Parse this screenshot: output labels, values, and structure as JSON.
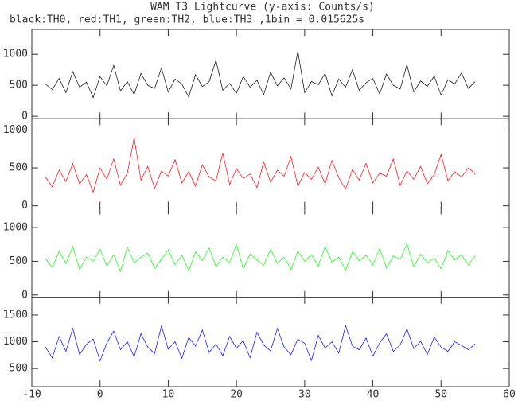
{
  "chart_data": [
    {
      "type": "line",
      "title": "WAM T3 Lightcurve (y-axis: Counts/s)",
      "subtitle": "black:TH0, red:TH1, green:TH2, blue:TH3 ,1bin = 0.015625s",
      "x": [
        -8,
        -7,
        -6,
        -5,
        -4,
        -3,
        -2,
        -1,
        0,
        1,
        2,
        3,
        4,
        5,
        6,
        7,
        8,
        9,
        10,
        11,
        12,
        13,
        14,
        15,
        16,
        17,
        18,
        19,
        20,
        21,
        22,
        23,
        24,
        25,
        26,
        27,
        28,
        29,
        30,
        31,
        32,
        33,
        34,
        35,
        36,
        37,
        38,
        39,
        40,
        41,
        42,
        43,
        44,
        45,
        46,
        47,
        48,
        49,
        50,
        51,
        52,
        53,
        54,
        55
      ],
      "series": [
        {
          "color": "#000000",
          "values": [
            520,
            430,
            610,
            380,
            720,
            470,
            550,
            300,
            640,
            490,
            820,
            410,
            560,
            350,
            690,
            500,
            450,
            780,
            390,
            600,
            520,
            310,
            670,
            480,
            560,
            900,
            420,
            530,
            370,
            640,
            470,
            580,
            350,
            710,
            490,
            620,
            440,
            1050,
            380,
            560,
            510,
            690,
            330,
            600,
            470,
            750,
            420,
            540,
            610,
            360,
            680,
            500,
            440,
            830,
            390,
            570,
            480,
            650,
            340,
            590,
            520,
            700,
            450,
            560
          ]
        }
      ],
      "xlim": [
        -10,
        60
      ],
      "ylim": [
        -40,
        1400
      ],
      "yticks": [
        0,
        500,
        1000
      ]
    },
    {
      "type": "line",
      "x": [
        -8,
        -7,
        -6,
        -5,
        -4,
        -3,
        -2,
        -1,
        0,
        1,
        2,
        3,
        4,
        5,
        6,
        7,
        8,
        9,
        10,
        11,
        12,
        13,
        14,
        15,
        16,
        17,
        18,
        19,
        20,
        21,
        22,
        23,
        24,
        25,
        26,
        27,
        28,
        29,
        30,
        31,
        32,
        33,
        34,
        35,
        36,
        37,
        38,
        39,
        40,
        41,
        42,
        43,
        44,
        45,
        46,
        47,
        48,
        49,
        50,
        51,
        52,
        53,
        54,
        55
      ],
      "series": [
        {
          "color": "#ff0000",
          "values": [
            380,
            250,
            470,
            320,
            560,
            290,
            410,
            180,
            500,
            350,
            620,
            270,
            430,
            900,
            340,
            520,
            230,
            460,
            390,
            610,
            300,
            450,
            260,
            540,
            380,
            330,
            700,
            280,
            490,
            360,
            420,
            240,
            580,
            310,
            470,
            390,
            650,
            260,
            440,
            350,
            510,
            290,
            600,
            370,
            220,
            480,
            340,
            560,
            300,
            430,
            390,
            620,
            270,
            460,
            350,
            520,
            290,
            410,
            680,
            330,
            450,
            380,
            500,
            420
          ]
        }
      ],
      "xlim": [
        -10,
        60
      ],
      "ylim": [
        -30,
        1150
      ],
      "yticks": [
        0,
        500,
        1000
      ]
    },
    {
      "type": "line",
      "x": [
        -8,
        -7,
        -6,
        -5,
        -4,
        -3,
        -2,
        -1,
        0,
        1,
        2,
        3,
        4,
        5,
        6,
        7,
        8,
        9,
        10,
        11,
        12,
        13,
        14,
        15,
        16,
        17,
        18,
        19,
        20,
        21,
        22,
        23,
        24,
        25,
        26,
        27,
        28,
        29,
        30,
        31,
        32,
        33,
        34,
        35,
        36,
        37,
        38,
        39,
        40,
        41,
        42,
        43,
        44,
        45,
        46,
        47,
        48,
        49,
        50,
        51,
        52,
        53,
        54,
        55
      ],
      "series": [
        {
          "color": "#00ff00",
          "values": [
            540,
            410,
            650,
            470,
            720,
            380,
            560,
            500,
            680,
            430,
            600,
            350,
            710,
            480,
            560,
            620,
            400,
            530,
            670,
            450,
            590,
            360,
            640,
            510,
            700,
            420,
            560,
            480,
            750,
            390,
            610,
            520,
            440,
            680,
            470,
            560,
            380,
            650,
            500,
            600,
            430,
            720,
            490,
            560,
            370,
            640,
            510,
            590,
            450,
            690,
            400,
            580,
            530,
            760,
            420,
            610,
            480,
            550,
            390,
            660,
            520,
            600,
            450,
            580
          ]
        }
      ],
      "xlim": [
        -10,
        60
      ],
      "ylim": [
        -35,
        1290
      ],
      "yticks": [
        0,
        500,
        1000
      ]
    },
    {
      "type": "line",
      "x": [
        -8,
        -7,
        -6,
        -5,
        -4,
        -3,
        -2,
        -1,
        0,
        1,
        2,
        3,
        4,
        5,
        6,
        7,
        8,
        9,
        10,
        11,
        12,
        13,
        14,
        15,
        16,
        17,
        18,
        19,
        20,
        21,
        22,
        23,
        24,
        25,
        26,
        27,
        28,
        29,
        30,
        31,
        32,
        33,
        34,
        35,
        36,
        37,
        38,
        39,
        40,
        41,
        42,
        43,
        44,
        45,
        46,
        47,
        48,
        49,
        50,
        51,
        52,
        53,
        54,
        55
      ],
      "series": [
        {
          "color": "#0000ff",
          "values": [
            900,
            700,
            1100,
            820,
            1250,
            760,
            950,
            1050,
            640,
            980,
            1200,
            850,
            1000,
            720,
            1150,
            900,
            780,
            1300,
            860,
            1000,
            690,
            1080,
            920,
            1220,
            800,
            960,
            740,
            1100,
            880,
            1020,
            700,
            1180,
            940,
            830,
            1250,
            900,
            760,
            1050,
            970,
            650,
            1120,
            880,
            1000,
            790,
            1300,
            920,
            850,
            1070,
            730,
            980,
            1150,
            820,
            940,
            1240,
            870,
            1010,
            760,
            1090,
            900,
            820,
            1000,
            930,
            850,
            960
          ]
        }
      ],
      "xlim": [
        -10,
        60
      ],
      "ylim": [
        160,
        1830
      ],
      "yticks": [
        500,
        1000,
        1500
      ],
      "xticks": [
        -10,
        0,
        10,
        20,
        30,
        40,
        50,
        60
      ]
    }
  ]
}
